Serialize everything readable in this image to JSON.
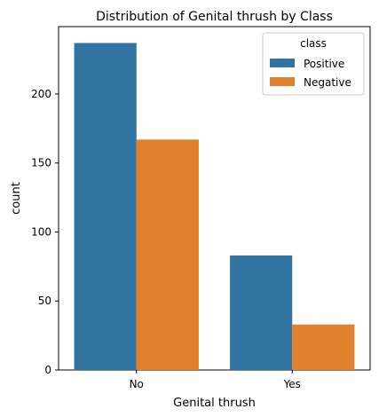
{
  "chart_data": {
    "type": "bar",
    "title": "Distribution of Genital thrush by Class",
    "xlabel": "Genital thrush",
    "ylabel": "count",
    "categories": [
      "No",
      "Yes"
    ],
    "series": [
      {
        "name": "Positive",
        "values": [
          237,
          83
        ],
        "color": "#3274a1"
      },
      {
        "name": "Negative",
        "values": [
          167,
          33
        ],
        "color": "#e1812c"
      }
    ],
    "ylim": [
      0,
      248.85
    ],
    "yticks": [
      0,
      50,
      100,
      150,
      200
    ],
    "legend": {
      "title": "class",
      "position": "top-right"
    },
    "grid": false
  }
}
